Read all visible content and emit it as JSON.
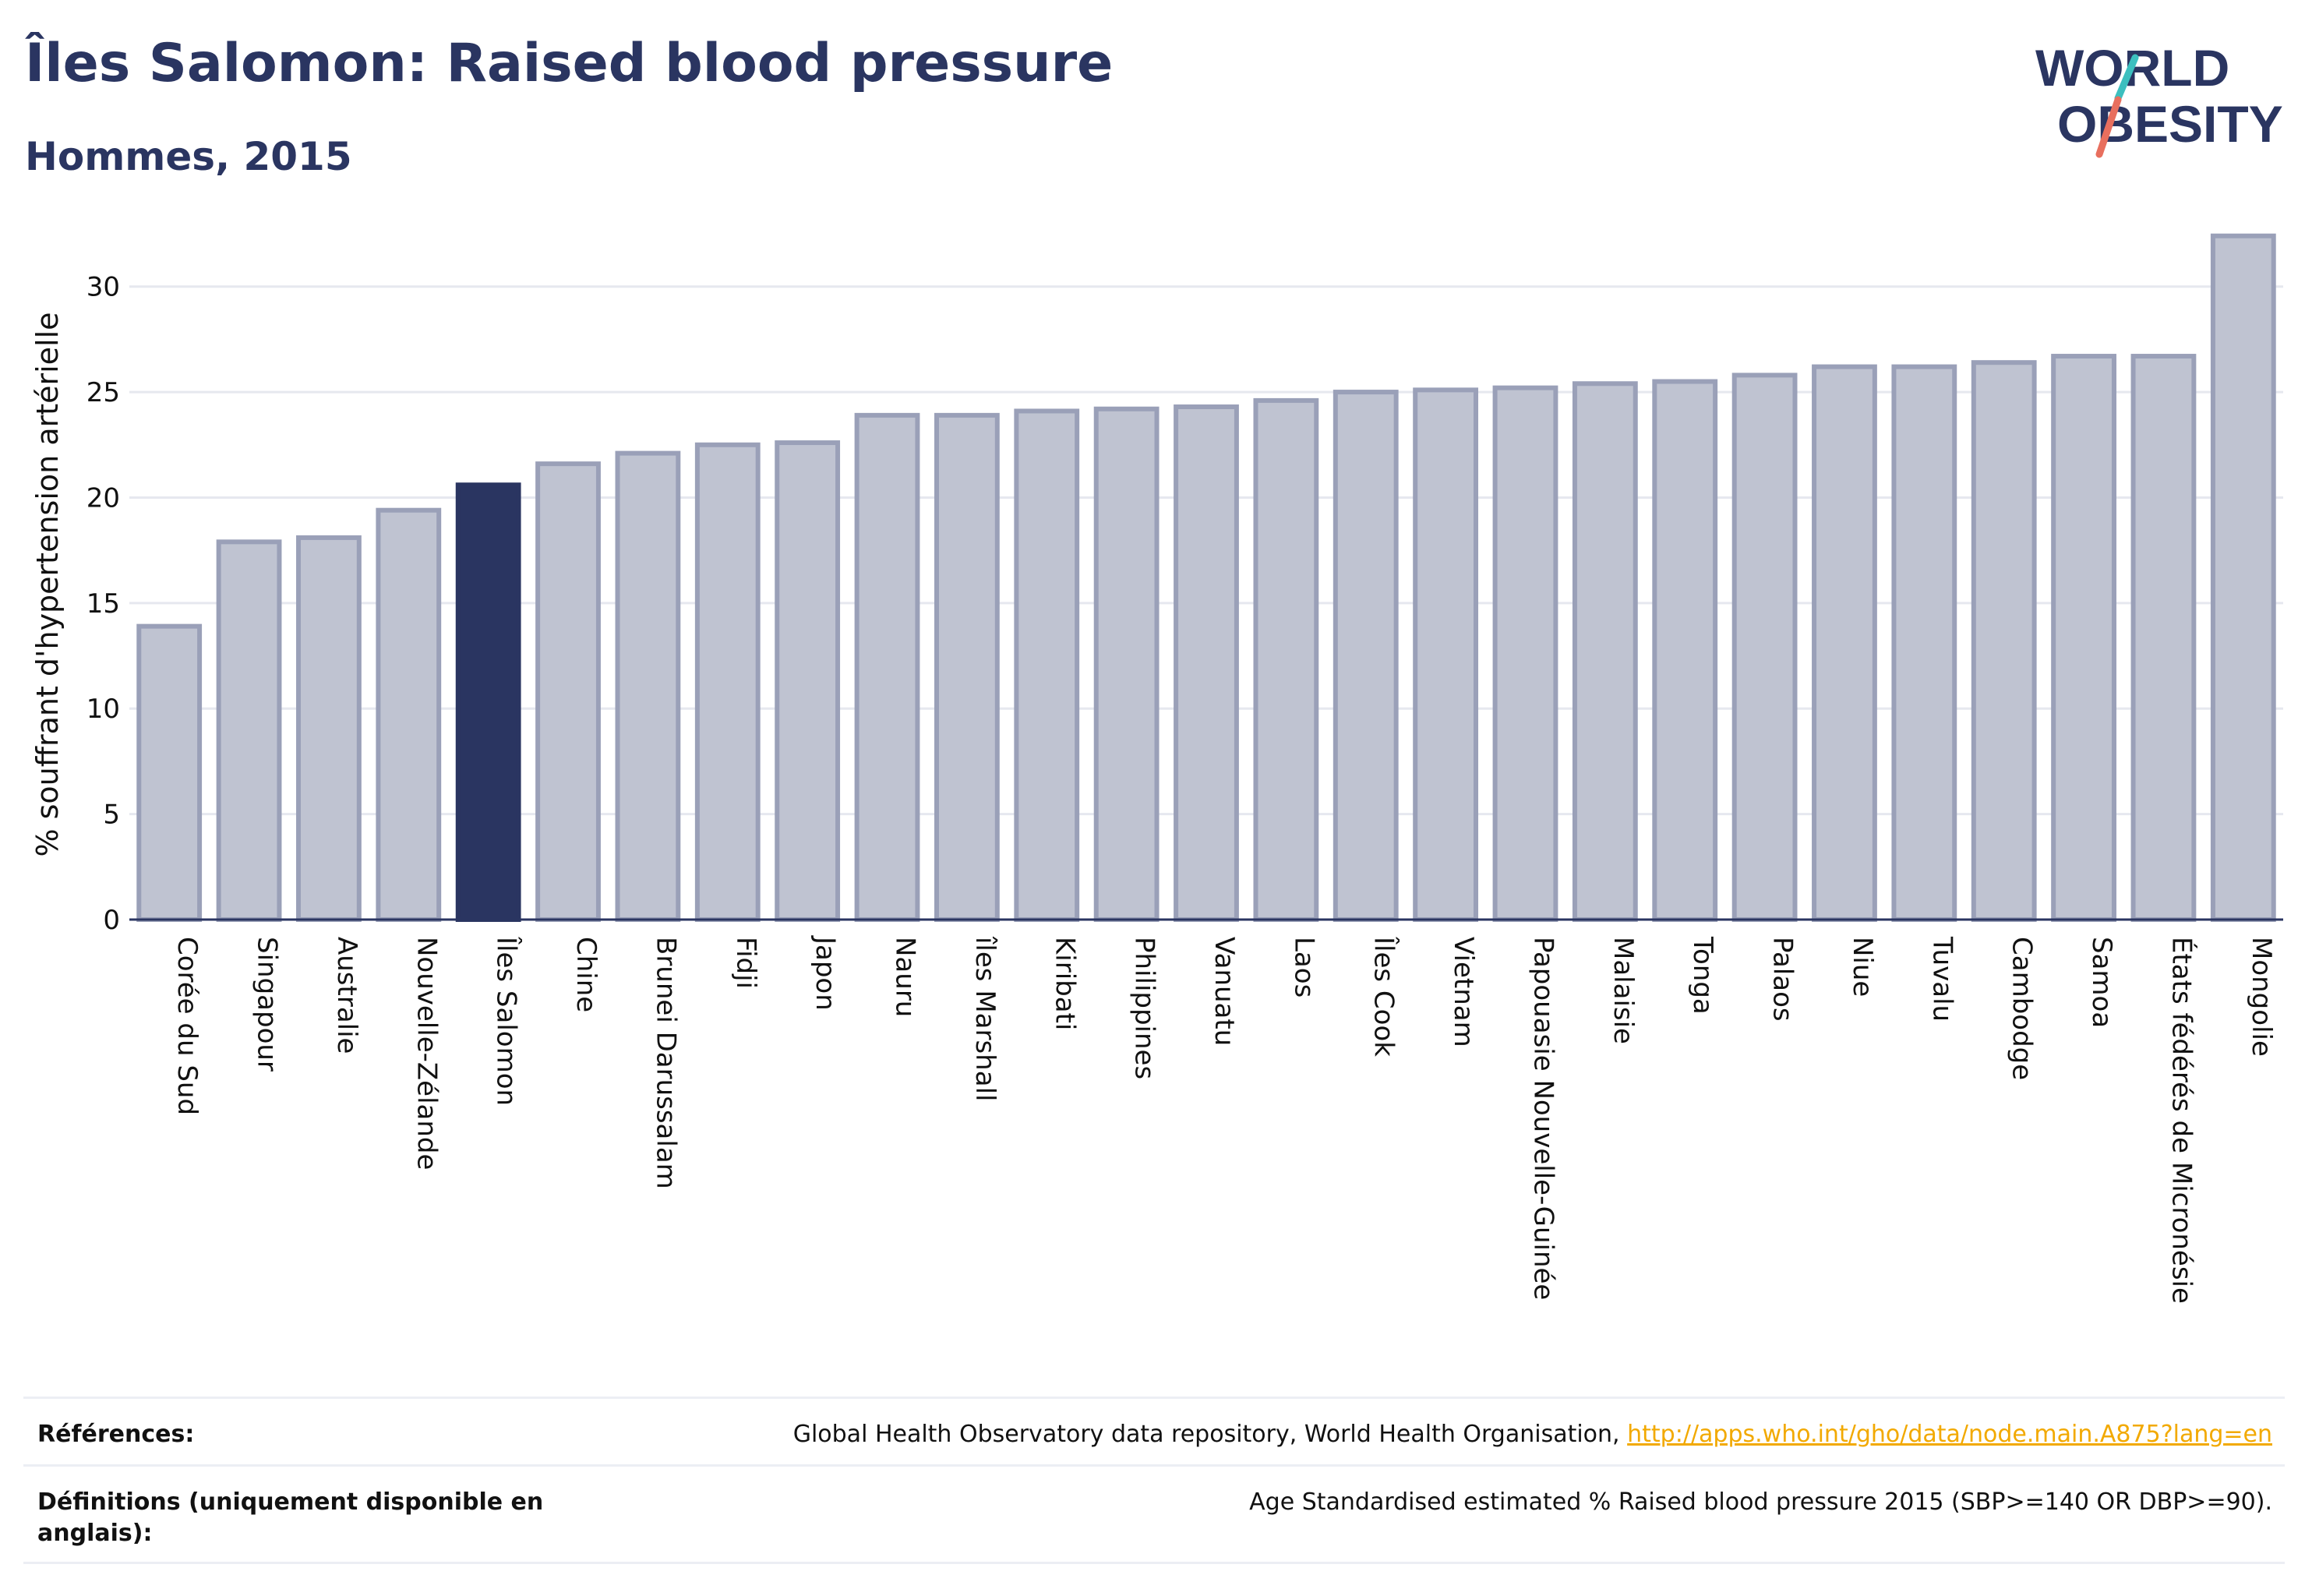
{
  "header": {
    "title": "Îles Salomon: Raised blood pressure",
    "subtitle": "Hommes, 2015"
  },
  "logo": {
    "line1": "WORLD",
    "line2": "OBESITY",
    "colors": {
      "text": "#2a3561",
      "slash_top": "#3cbfbf",
      "slash_bottom": "#e86f5e"
    }
  },
  "chart_data": {
    "type": "bar",
    "title": "Îles Salomon: Raised blood pressure",
    "subtitle": "Hommes, 2015",
    "xlabel": "",
    "ylabel": "% souffrant d'hypertension artérielle",
    "ylim": [
      0,
      32.5
    ],
    "yticks": [
      0,
      5,
      10,
      15,
      20,
      25,
      30
    ],
    "grid": true,
    "highlight": "Îles Salomon",
    "colors": {
      "bar": "#bfc3d1",
      "bar_border": "#9aa0b8",
      "highlight": "#2a3561",
      "grid": "#e6e8ef",
      "axis": "#2a3561"
    },
    "categories": [
      "Corée du Sud",
      "Singapour",
      "Australie",
      "Nouvelle-Zélande",
      "Îles Salomon",
      "Chine",
      "Brunei Darussalam",
      "Fidji",
      "Japon",
      "Nauru",
      "îles Marshall",
      "Kiribati",
      "Philippines",
      "Vanuatu",
      "Laos",
      "Îles Cook",
      "Vietnam",
      "Papouasie Nouvelle-Guinée",
      "Malaisie",
      "Tonga",
      "Palaos",
      "Niue",
      "Tuvalu",
      "Cambodge",
      "Samoa",
      "États fédérés de Micronésie",
      "Mongolie"
    ],
    "values": [
      13.9,
      17.9,
      18.1,
      19.4,
      20.6,
      21.6,
      22.1,
      22.5,
      22.6,
      23.9,
      23.9,
      24.1,
      24.2,
      24.3,
      24.6,
      25.0,
      25.1,
      25.2,
      25.4,
      25.5,
      25.8,
      26.2,
      26.2,
      26.4,
      26.7,
      26.7,
      32.4
    ]
  },
  "footer": {
    "references_label": "Références:",
    "references_text": "Global Health Observatory data repository, World Health Organisation,",
    "references_link": "http://apps.who.int/gho/data/node.main.A875?lang=en",
    "definitions_label": "Définitions (uniquement disponible en anglais):",
    "definitions_text": "Age Standardised estimated % Raised blood pressure 2015 (SBP>=140 OR DBP>=90)."
  }
}
